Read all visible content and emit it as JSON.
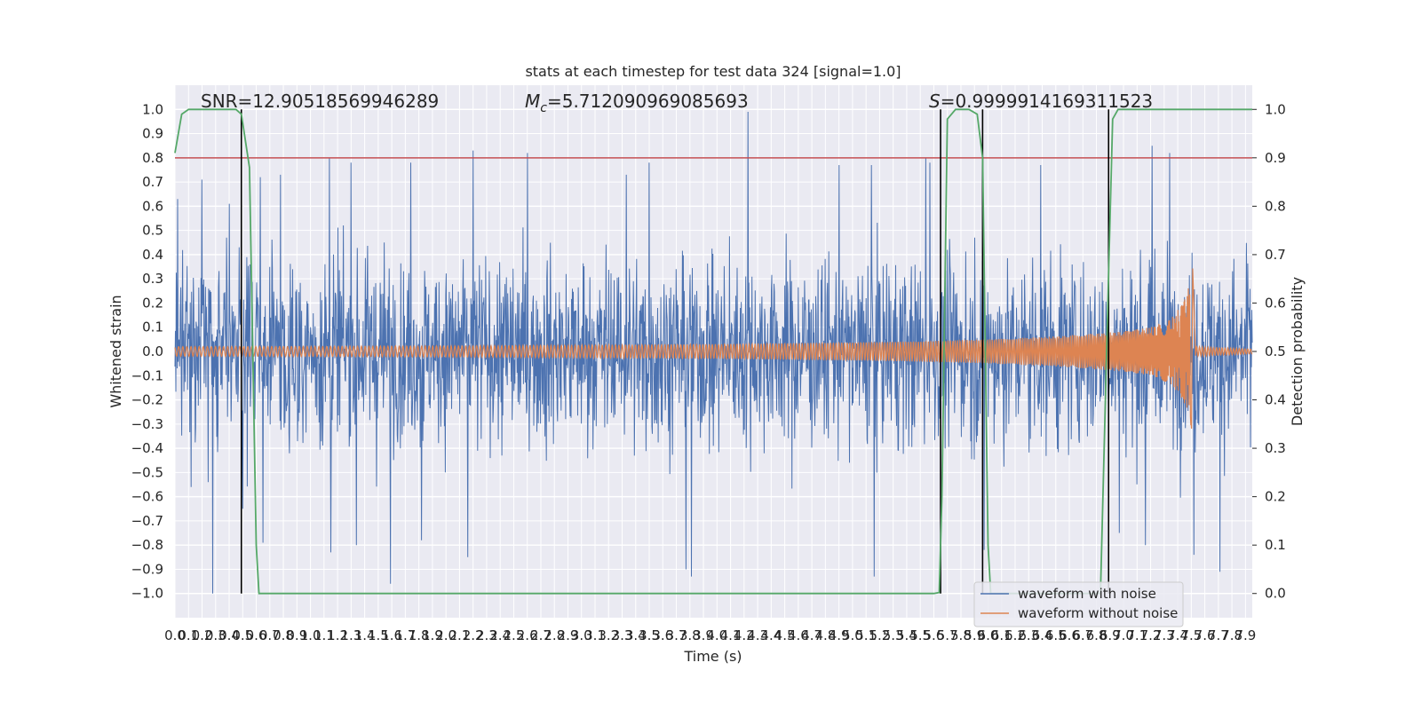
{
  "chart_data": {
    "type": "line",
    "title": "stats at each timestep for test data 324 [signal=1.0]",
    "xlabel": "Time (s)",
    "ylabel_left": "Whitened strain",
    "ylabel_right": "Detection probability",
    "xlim": [
      0.0,
      7.95
    ],
    "ylim_left": [
      -1.1,
      1.1
    ],
    "ylim_right": [
      -0.05,
      1.05
    ],
    "x_ticks": [
      "0.0",
      "0.1",
      "0.2",
      "0.3",
      "0.4",
      "0.5",
      "0.6",
      "0.7",
      "0.8",
      "0.9",
      "1.0",
      "1.1",
      "1.2",
      "1.3",
      "1.4",
      "1.5",
      "1.6",
      "1.7",
      "1.8",
      "1.9",
      "2.0",
      "2.1",
      "2.2",
      "2.3",
      "2.4",
      "2.5",
      "2.6",
      "2.7",
      "2.8",
      "2.9",
      "3.0",
      "3.1",
      "3.2",
      "3.3",
      "3.4",
      "3.5",
      "3.6",
      "3.7",
      "3.8",
      "3.9",
      "4.0",
      "4.1",
      "4.2",
      "4.3",
      "4.4",
      "4.5",
      "4.6",
      "4.7",
      "4.8",
      "4.9",
      "5.0",
      "5.1",
      "5.2",
      "5.3",
      "5.4",
      "5.5",
      "5.6",
      "5.7",
      "5.8",
      "5.9",
      "6.0",
      "6.1",
      "6.2",
      "6.3",
      "6.4",
      "6.5",
      "6.6",
      "6.7",
      "6.8",
      "6.9",
      "7.0",
      "7.1",
      "7.2",
      "7.3",
      "7.4",
      "7.5",
      "7.6",
      "7.7",
      "7.8",
      "7.9"
    ],
    "y_ticks_left": [
      "−1.0",
      "−0.9",
      "−0.8",
      "−0.7",
      "−0.6",
      "−0.5",
      "−0.4",
      "−0.3",
      "−0.2",
      "−0.1",
      "0.0",
      "0.1",
      "0.2",
      "0.3",
      "0.4",
      "0.5",
      "0.6",
      "0.7",
      "0.8",
      "0.9",
      "1.0"
    ],
    "y_ticks_right": [
      "0.0",
      "0.1",
      "0.2",
      "0.3",
      "0.4",
      "0.5",
      "0.6",
      "0.7",
      "0.8",
      "0.9",
      "1.0"
    ],
    "annotations": {
      "snr": "SNR=12.90518569946289",
      "mc_symbol": "M",
      "mc_subscript": "c",
      "mc_value": "=5.712090969085693",
      "s_symbol": "S",
      "s_value": "=0.9999914169311523"
    },
    "threshold": {
      "axis": "right",
      "value": 0.9,
      "color": "#c44e52"
    },
    "vertical_markers_s": [
      0.49,
      5.65,
      5.96,
      6.89
    ],
    "series": [
      {
        "name": "waveform with noise",
        "color": "#4c72b0",
        "axis": "left",
        "description_stats": {
          "typical_envelope": 0.45,
          "max_peak": 0.99,
          "min_peak": -1.0
        },
        "peaks": [
          [
            0.02,
            0.63
          ],
          [
            0.12,
            -0.56
          ],
          [
            0.2,
            0.71
          ],
          [
            0.28,
            -1.0
          ],
          [
            0.4,
            0.61
          ],
          [
            0.5,
            -0.65
          ],
          [
            0.63,
            0.72
          ],
          [
            0.65,
            -0.79
          ],
          [
            0.78,
            0.73
          ],
          [
            1.14,
            0.8
          ],
          [
            1.15,
            -0.83
          ],
          [
            1.3,
            0.78
          ],
          [
            1.34,
            -0.8
          ],
          [
            1.59,
            -0.96
          ],
          [
            1.74,
            0.78
          ],
          [
            1.82,
            -0.78
          ],
          [
            2.2,
            0.83
          ],
          [
            2.16,
            -0.85
          ],
          [
            2.6,
            0.82
          ],
          [
            3.33,
            0.73
          ],
          [
            3.5,
            0.78
          ],
          [
            3.77,
            -0.9
          ],
          [
            3.81,
            -0.93
          ],
          [
            4.23,
            0.99
          ],
          [
            4.9,
            0.77
          ],
          [
            5.14,
            0.77
          ],
          [
            5.16,
            -0.93
          ],
          [
            5.54,
            0.8
          ],
          [
            5.57,
            0.78
          ],
          [
            5.97,
            -0.82
          ],
          [
            6.39,
            0.77
          ],
          [
            6.97,
            -0.75
          ],
          [
            7.16,
            -0.8
          ],
          [
            7.21,
            0.85
          ],
          [
            7.34,
            0.82
          ],
          [
            7.52,
            -0.84
          ],
          [
            7.71,
            -0.91
          ]
        ]
      },
      {
        "name": "waveform without noise",
        "color": "#dd8452",
        "axis": "left",
        "description_stats": {
          "merger_time": 7.51,
          "peak_amplitude": 0.35,
          "min_amplitude": -0.28
        },
        "envelope": [
          [
            0.0,
            0.02
          ],
          [
            1.0,
            0.021
          ],
          [
            2.0,
            0.023
          ],
          [
            3.0,
            0.026
          ],
          [
            4.0,
            0.03
          ],
          [
            5.0,
            0.037
          ],
          [
            5.5,
            0.042
          ],
          [
            6.0,
            0.05
          ],
          [
            6.5,
            0.062
          ],
          [
            7.0,
            0.083
          ],
          [
            7.2,
            0.1
          ],
          [
            7.35,
            0.135
          ],
          [
            7.44,
            0.2
          ],
          [
            7.49,
            0.28
          ],
          [
            7.51,
            0.35
          ],
          [
            7.53,
            0.02
          ],
          [
            7.95,
            0.01
          ]
        ]
      },
      {
        "name": "",
        "color": "#55a868",
        "axis": "right",
        "points": [
          [
            0.0,
            0.91
          ],
          [
            0.05,
            0.99
          ],
          [
            0.1,
            1.0
          ],
          [
            0.45,
            1.0
          ],
          [
            0.49,
            0.99
          ],
          [
            0.55,
            0.88
          ],
          [
            0.6,
            0.1
          ],
          [
            0.62,
            0.0
          ],
          [
            5.6,
            0.0
          ],
          [
            5.64,
            0.002
          ],
          [
            5.66,
            0.2
          ],
          [
            5.7,
            0.98
          ],
          [
            5.76,
            1.0
          ],
          [
            5.86,
            1.0
          ],
          [
            5.92,
            0.99
          ],
          [
            5.96,
            0.9
          ],
          [
            6.0,
            0.1
          ],
          [
            6.02,
            0.0
          ],
          [
            6.83,
            0.0
          ],
          [
            6.88,
            0.55
          ],
          [
            6.92,
            0.98
          ],
          [
            6.96,
            1.0
          ],
          [
            7.95,
            1.0
          ]
        ]
      }
    ],
    "legend": {
      "placement": "lower right",
      "entries": [
        "waveform with noise",
        "waveform without noise"
      ]
    },
    "grid": true
  }
}
